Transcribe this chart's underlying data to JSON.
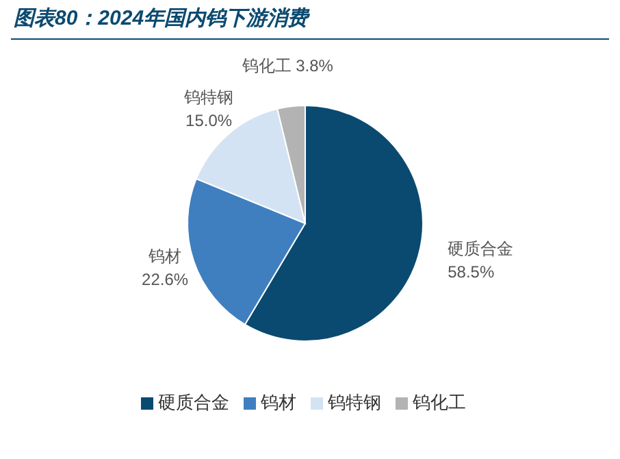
{
  "chart_data": {
    "type": "pie",
    "title": "图表80：2024年国内钨下游消费",
    "categories": [
      "硬质合金",
      "钨材",
      "钨特钢",
      "钨化工"
    ],
    "values": [
      58.5,
      22.6,
      15.0,
      3.8
    ],
    "value_labels": [
      "58.5%",
      "22.6%",
      "15.0%",
      "3.8%"
    ],
    "colors": [
      "#0b4a70",
      "#3f7fc0",
      "#d3e3f3",
      "#b3b3b3"
    ],
    "legend": "bottom"
  }
}
